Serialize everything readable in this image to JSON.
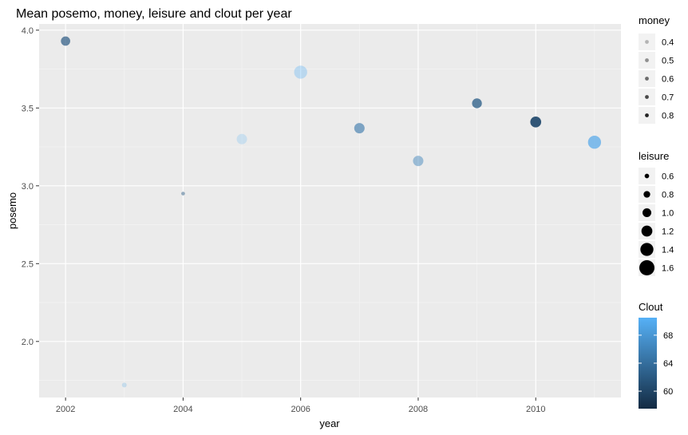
{
  "chart_data": {
    "type": "scatter",
    "title": "Mean posemo, money, leisure and clout per year",
    "xlabel": "year",
    "ylabel": "posemo",
    "xlim": [
      2001.55,
      2011.45
    ],
    "ylim": [
      1.64,
      4.04
    ],
    "x_ticks": [
      2002,
      2004,
      2006,
      2008,
      2010
    ],
    "x_tick_labels": [
      "2002",
      "2004",
      "2006",
      "2008",
      "2010"
    ],
    "y_ticks": [
      2.0,
      2.5,
      3.0,
      3.5,
      4.0
    ],
    "y_tick_labels": [
      "2.0",
      "2.5",
      "3.0",
      "3.5",
      "4.0"
    ],
    "grid": true,
    "points": [
      {
        "year": 2002,
        "posemo": 3.93,
        "leisure": 1.05,
        "money": 0.7,
        "clout": 62.0
      },
      {
        "year": 2003,
        "posemo": 1.72,
        "leisure": 0.62,
        "money": 0.4,
        "clout": 69.5
      },
      {
        "year": 2004,
        "posemo": 2.95,
        "leisure": 0.52,
        "money": 0.55,
        "clout": 62.0
      },
      {
        "year": 2005,
        "posemo": 3.3,
        "leisure": 1.15,
        "money": 0.38,
        "clout": 72.0
      },
      {
        "year": 2006,
        "posemo": 3.73,
        "leisure": 1.4,
        "money": 0.45,
        "clout": 71.0
      },
      {
        "year": 2007,
        "posemo": 3.37,
        "leisure": 1.15,
        "money": 0.65,
        "clout": 65.0
      },
      {
        "year": 2008,
        "posemo": 3.16,
        "leisure": 1.15,
        "money": 0.55,
        "clout": 66.0
      },
      {
        "year": 2009,
        "posemo": 3.53,
        "leisure": 1.1,
        "money": 0.75,
        "clout": 62.5
      },
      {
        "year": 2010,
        "posemo": 3.41,
        "leisure": 1.2,
        "money": 0.85,
        "clout": 60.5
      },
      {
        "year": 2011,
        "posemo": 3.28,
        "leisure": 1.4,
        "money": 0.7,
        "clout": 69.5
      }
    ],
    "legends": {
      "money": {
        "title": "money",
        "labels": [
          "0.4",
          "0.5",
          "0.6",
          "0.7",
          "0.8"
        ],
        "values": [
          0.4,
          0.5,
          0.6,
          0.7,
          0.8
        ]
      },
      "leisure": {
        "title": "leisure",
        "labels": [
          "0.6",
          "0.8",
          "1.0",
          "1.2",
          "1.4",
          "1.6"
        ],
        "values": [
          0.6,
          0.8,
          1.0,
          1.2,
          1.4,
          1.6
        ]
      },
      "clout": {
        "title": "Clout",
        "labels": [
          "60",
          "64",
          "68"
        ],
        "values": [
          60,
          64,
          68
        ],
        "range": [
          57.5,
          70.5
        ],
        "color_low": "#132b43",
        "color_high": "#56b1f7"
      }
    },
    "colors": {
      "panel_bg": "#ebebeb",
      "grid_major": "#ffffff",
      "grid_minor": "#f5f5f5"
    }
  }
}
